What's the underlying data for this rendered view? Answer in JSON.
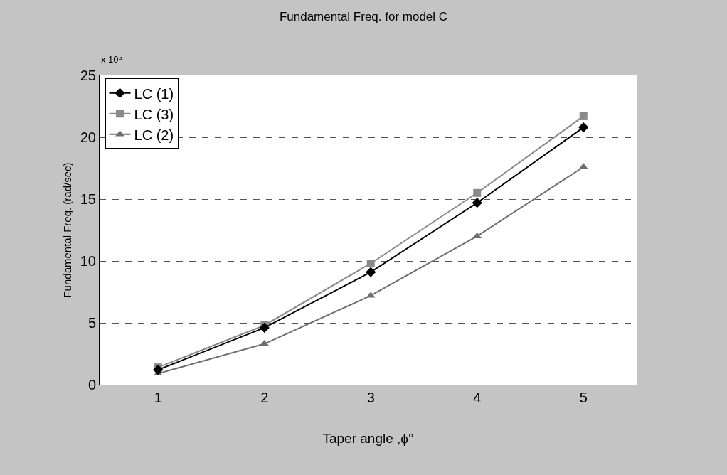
{
  "chart_data": {
    "type": "line",
    "title": "Fundamental Freq. for model C",
    "xlabel": "Taper angle ,ϕ°",
    "ylabel": "Fundamental Freq. (rad/sec)",
    "annotations": [
      "x 10⁴"
    ],
    "categories": [
      "1",
      "2",
      "3",
      "4",
      "5"
    ],
    "series": [
      {
        "name": "LC (1)",
        "color": "#000000",
        "marker": "diamond",
        "values": [
          1.2,
          4.6,
          9.1,
          14.7,
          20.8
        ]
      },
      {
        "name": "LC (3)",
        "color": "#8a8a8a",
        "marker": "square",
        "values": [
          1.4,
          4.8,
          9.8,
          15.5,
          21.7
        ]
      },
      {
        "name": "LC (2)",
        "color": "#6e6e6e",
        "marker": "triangle",
        "values": [
          0.9,
          3.3,
          7.2,
          12.0,
          17.6
        ]
      }
    ],
    "ylim": [
      0,
      25
    ],
    "yticks": [
      0,
      5,
      10,
      15,
      20,
      25
    ],
    "grid": "y",
    "legend": "top left",
    "line_style": "solid"
  }
}
